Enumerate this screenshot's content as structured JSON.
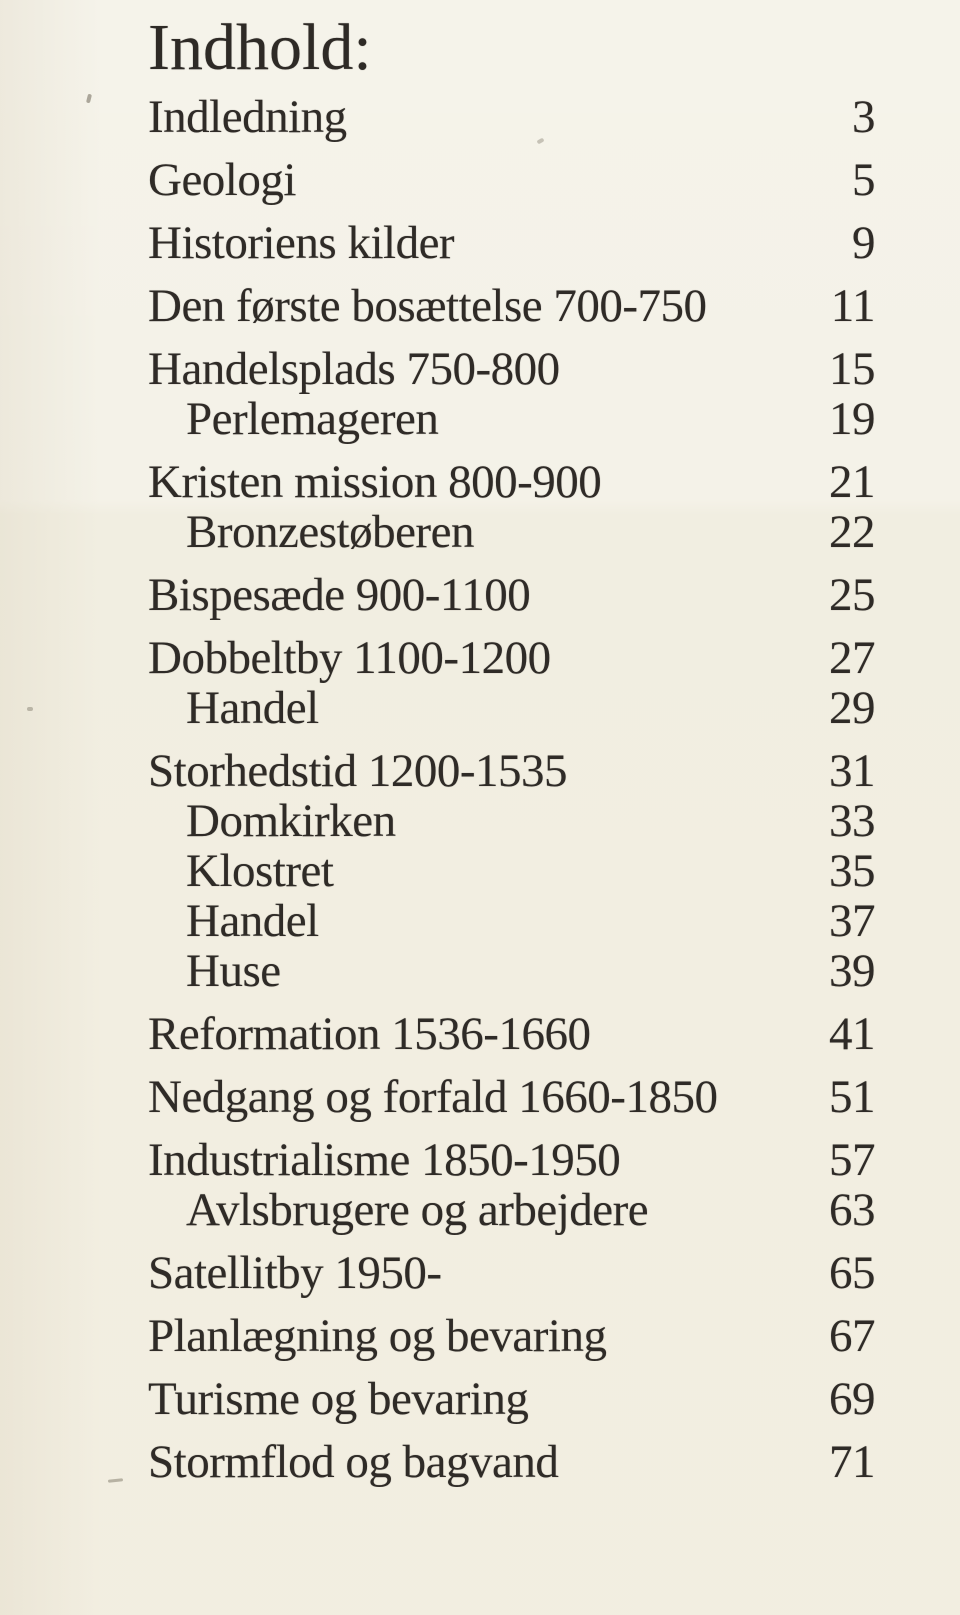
{
  "page": {
    "title": "Indhold:",
    "background_color": "#f1eee1",
    "text_color": "#2f2b27"
  },
  "toc": {
    "entries": [
      {
        "label": "Indledning",
        "page": "3",
        "level": 0
      },
      {
        "label": "Geologi",
        "page": "5",
        "level": 0
      },
      {
        "label": "Historiens kilder",
        "page": "9",
        "level": 0
      },
      {
        "label": "Den første bosættelse 700-750",
        "page": "11",
        "level": 0
      },
      {
        "label": "Handelsplads 750-800",
        "page": "15",
        "level": 0
      },
      {
        "label": "Perlemageren",
        "page": "19",
        "level": 1
      },
      {
        "label": "Kristen mission 800-900",
        "page": "21",
        "level": 0
      },
      {
        "label": "Bronzestøberen",
        "page": "22",
        "level": 1
      },
      {
        "label": "Bispesæde 900-1100",
        "page": "25",
        "level": 0
      },
      {
        "label": "Dobbeltby 1100-1200",
        "page": "27",
        "level": 0
      },
      {
        "label": "Handel",
        "page": "29",
        "level": 1
      },
      {
        "label": "Storhedstid 1200-1535",
        "page": "31",
        "level": 0
      },
      {
        "label": "Domkirken",
        "page": "33",
        "level": 1
      },
      {
        "label": "Klostret",
        "page": "35",
        "level": 1
      },
      {
        "label": "Handel",
        "page": "37",
        "level": 1
      },
      {
        "label": "Huse",
        "page": "39",
        "level": 1
      },
      {
        "label": "Reformation 1536-1660",
        "page": "41",
        "level": 0
      },
      {
        "label": "Nedgang og forfald 1660-1850",
        "page": "51",
        "level": 0
      },
      {
        "label": "Industrialisme 1850-1950",
        "page": "57",
        "level": 0
      },
      {
        "label": "Avlsbrugere og arbejdere",
        "page": "63",
        "level": 1
      },
      {
        "label": "Satellitby 1950-",
        "page": "65",
        "level": 0
      },
      {
        "label": "Planlægning og bevaring",
        "page": "67",
        "level": 0
      },
      {
        "label": "Turisme og bevaring",
        "page": "69",
        "level": 0
      },
      {
        "label": "Stormflod og bagvand",
        "page": "71",
        "level": 0
      }
    ]
  }
}
